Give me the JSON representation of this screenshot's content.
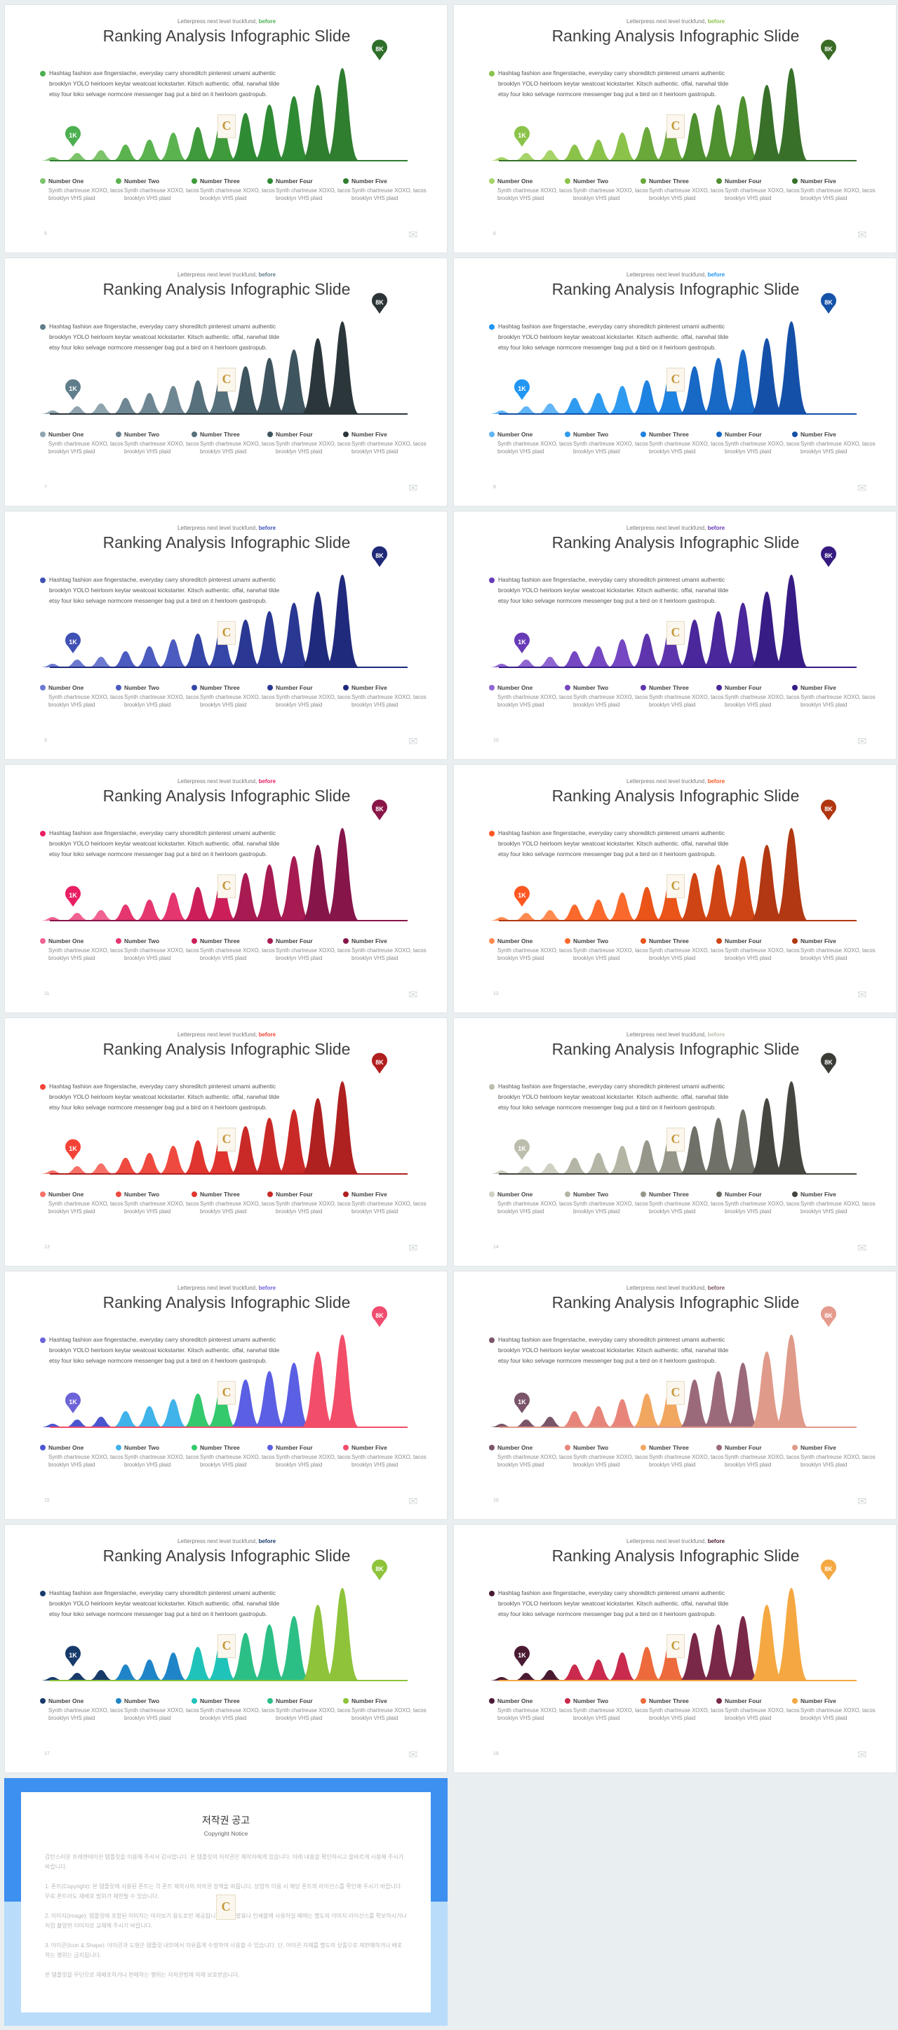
{
  "slide": {
    "subtitle_text": "Letterpress next level truckfund,",
    "subtitle_accent": "before",
    "title": "Ranking Analysis Infographic Slide",
    "body": "Hashtag fashion axe fingerstache, everyday carry shoreditch pinterest umami authentic brooklyn YOLO heirloom keytar weatcoat kickstarter. Kitsch authentic. offal, narwhal tilde etsy four loko selvage normcore messenger bag put a bird on it heirloom gastropub.",
    "low_label": "1K",
    "high_label": "8K",
    "logo_glyph": "C",
    "watermark_icon": "envelope-icon",
    "legend": [
      {
        "name": "Number One",
        "desc": "Synth chartreuse XOXO, tacos brooklyn VHS plaid"
      },
      {
        "name": "Number Two",
        "desc": "Synth chartreuse XOXO, tacos brooklyn VHS plaid"
      },
      {
        "name": "Number Three",
        "desc": "Synth chartreuse XOXO, tacos brooklyn VHS plaid"
      },
      {
        "name": "Number Four",
        "desc": "Synth chartreuse XOXO, tacos brooklyn VHS plaid"
      },
      {
        "name": "Number Five",
        "desc": "Synth chartreuse XOXO, tacos brooklyn VHS plaid"
      }
    ]
  },
  "slides": [
    {
      "page": "5",
      "accent": "#4caf50",
      "colors": [
        "#7cc36a",
        "#5bb34f",
        "#3e9a3b",
        "#2f8a34",
        "#2f7d2f"
      ],
      "pin": "#2f6e2a"
    },
    {
      "page": "6",
      "accent": "#8bc34a",
      "colors": [
        "#a6d468",
        "#8bc34a",
        "#6aa83a",
        "#4e8f2f",
        "#38702a"
      ],
      "pin": "#3a6b26"
    },
    {
      "page": "7",
      "accent": "#607d8b",
      "colors": [
        "#8fa4ae",
        "#6f8793",
        "#56707c",
        "#3e545e",
        "#2b363b"
      ],
      "pin": "#2c3438"
    },
    {
      "page": "8",
      "accent": "#2196f3",
      "colors": [
        "#62b5f6",
        "#2f9bf0",
        "#1e82e0",
        "#1868c6",
        "#1450a8"
      ],
      "pin": "#1552a8"
    },
    {
      "page": "9",
      "accent": "#3f51b5",
      "colors": [
        "#6b79d0",
        "#4b5bc0",
        "#3546a8",
        "#2a3893",
        "#202a7c"
      ],
      "pin": "#1f2978"
    },
    {
      "page": "10",
      "accent": "#673ab7",
      "colors": [
        "#8f66d2",
        "#7547c2",
        "#5e35ad",
        "#4a279a",
        "#371c86"
      ],
      "pin": "#351b80"
    },
    {
      "page": "11",
      "accent": "#e91e63",
      "colors": [
        "#f06291",
        "#e5366f",
        "#cc1f5a",
        "#a81a52",
        "#86154a"
      ],
      "pin": "#8a1648"
    },
    {
      "page": "12",
      "accent": "#ff5722",
      "colors": [
        "#ff8a50",
        "#fb6a2c",
        "#ea5419",
        "#cf4414",
        "#b13812"
      ],
      "pin": "#b03610"
    },
    {
      "page": "13",
      "accent": "#f44336",
      "colors": [
        "#f77068",
        "#ef4a40",
        "#e0352f",
        "#c92a27",
        "#af2020"
      ],
      "pin": "#b01e1e"
    },
    {
      "page": "14",
      "accent": "#bdbdad",
      "colors": [
        "#cfcfc2",
        "#b5b5a6",
        "#96978a",
        "#6f7068",
        "#45463f"
      ],
      "pin": "#3b3c36"
    },
    {
      "page": "15",
      "accent": "#6c63d8",
      "colors": [
        "#4b55d0",
        "#3fb3ea",
        "#35c96e",
        "#5b5fe3",
        "#f24e6a"
      ],
      "pin": "#f04c6f"
    },
    {
      "page": "16",
      "accent": "#7a5468",
      "colors": [
        "#7a5468",
        "#e8857a",
        "#f2a761",
        "#9b6a7a",
        "#e09a8a"
      ],
      "pin": "#e49a8c"
    },
    {
      "page": "17",
      "accent": "#173a6b",
      "colors": [
        "#173a6b",
        "#1f85c8",
        "#1fc3b9",
        "#2bbf86",
        "#8ec33a"
      ],
      "pin": "#8ec33a"
    },
    {
      "page": "18",
      "accent": "#4a1a33",
      "colors": [
        "#4a1a33",
        "#c92a4d",
        "#ec6a3b",
        "#7a2848",
        "#f5a841"
      ],
      "pin": "#f5a841"
    }
  ],
  "notice": {
    "title": "저작권 공고",
    "subtitle": "Copyright Notice",
    "p1": "감탄스러운 프레젠테이션 템플릿을 이용해 주셔서 감사합니다. 본 템플릿의 저작권은 제작자에게 있습니다. 아래 내용을 확인하시고 올바르게 사용해 주시기 바랍니다.",
    "p2": "1. 폰트(Copyright): 본 템플릿에 사용된 폰트는 각 폰트 제작사의 저작권 정책을 따릅니다. 상업적 이용 시 해당 폰트의 라이선스를 확인해 주시기 바랍니다. 무료 폰트라도 재배포 범위가 제한될 수 있습니다.",
    "p3": "2. 이미지(Image): 템플릿에 포함된 이미지는 미리보기 용도로만 제공됩니다. 실제 발표나 인쇄물에 사용하실 때에는 별도의 이미지 라이선스를 확보하시거나 직접 촬영한 이미지로 교체해 주시기 바랍니다.",
    "p4": "3. 아이콘(Icon & Shape): 아이콘과 도형은 템플릿 내부에서 자유롭게 수정하여 사용할 수 있습니다. 단, 아이콘 자체를 별도의 상품으로 재판매하거나 배포하는 행위는 금지됩니다.",
    "p5": "본 템플릿을 무단으로 재배포하거나 판매하는 행위는 저작권법에 의해 보호받습니다."
  }
}
